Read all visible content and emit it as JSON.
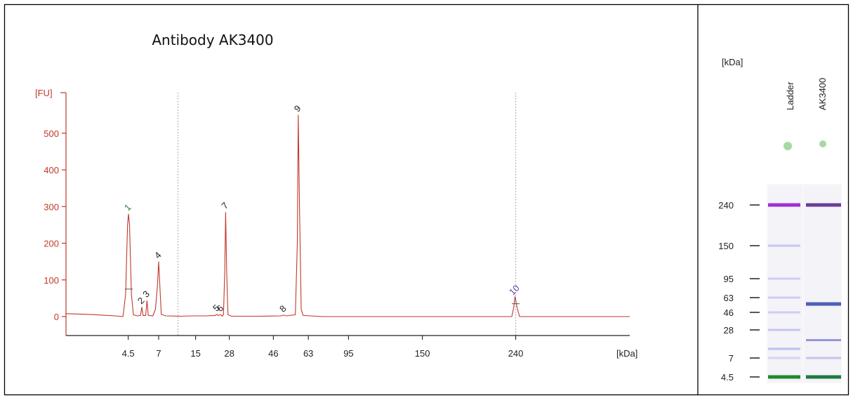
{
  "chart_data": {
    "type": "line",
    "title": "Antibody AK3400",
    "ylabel": "[FU]",
    "xlabel": "[kDa]",
    "ylim": [
      -60,
      600
    ],
    "y_ticks": [
      0,
      100,
      200,
      300,
      400,
      500
    ],
    "x_ticks": [
      "4.5",
      "7",
      "15",
      "28",
      "46",
      "63",
      "95",
      "150",
      "240"
    ],
    "x_tick_time": [
      32.5,
      34.85,
      37.7,
      40.3,
      43.7,
      46.4,
      49.5,
      55.2,
      62.4
    ],
    "x_range_time": [
      27.7,
      71.2
    ],
    "vlines_time": [
      36.35,
      62.4
    ],
    "trace_color": "#c0392b",
    "trace": [
      [
        27.7,
        8
      ],
      [
        28.5,
        7
      ],
      [
        29.5,
        6
      ],
      [
        30.5,
        4
      ],
      [
        31.5,
        2
      ],
      [
        32.1,
        0
      ],
      [
        32.3,
        60
      ],
      [
        32.45,
        250
      ],
      [
        32.52,
        280
      ],
      [
        32.6,
        250
      ],
      [
        32.75,
        60
      ],
      [
        32.9,
        5
      ],
      [
        33.2,
        2
      ],
      [
        33.45,
        3
      ],
      [
        33.55,
        26
      ],
      [
        33.65,
        3
      ],
      [
        33.85,
        3
      ],
      [
        33.95,
        44
      ],
      [
        34.05,
        3
      ],
      [
        34.4,
        2
      ],
      [
        34.6,
        20
      ],
      [
        34.75,
        80
      ],
      [
        34.85,
        150
      ],
      [
        34.95,
        80
      ],
      [
        35.05,
        6
      ],
      [
        35.4,
        2
      ],
      [
        36.5,
        1
      ],
      [
        37.5,
        2
      ],
      [
        38.5,
        2
      ],
      [
        39.2,
        3
      ],
      [
        39.35,
        6
      ],
      [
        39.45,
        3
      ],
      [
        39.65,
        5
      ],
      [
        39.75,
        1
      ],
      [
        39.85,
        5
      ],
      [
        39.95,
        120
      ],
      [
        40.02,
        285
      ],
      [
        40.1,
        120
      ],
      [
        40.2,
        5
      ],
      [
        40.5,
        1
      ],
      [
        42.5,
        1
      ],
      [
        44.3,
        2
      ],
      [
        44.5,
        4
      ],
      [
        44.7,
        2
      ],
      [
        45.4,
        5
      ],
      [
        45.55,
        200
      ],
      [
        45.62,
        550
      ],
      [
        45.72,
        300
      ],
      [
        45.85,
        20
      ],
      [
        46.0,
        3
      ],
      [
        47.5,
        0
      ],
      [
        49.5,
        0
      ],
      [
        54.0,
        0
      ],
      [
        58.0,
        0
      ],
      [
        62.1,
        0
      ],
      [
        62.25,
        25
      ],
      [
        62.35,
        55
      ],
      [
        62.5,
        25
      ],
      [
        62.7,
        0
      ],
      [
        66.0,
        0
      ],
      [
        71.2,
        0
      ]
    ],
    "peaks": [
      {
        "label": "1",
        "time": 32.52,
        "y": 280,
        "color": "#2e7d32"
      },
      {
        "label": "2",
        "time": 33.55,
        "y": 26,
        "color": "#222222"
      },
      {
        "label": "3",
        "time": 33.95,
        "y": 44,
        "color": "#222222"
      },
      {
        "label": "4",
        "time": 34.85,
        "y": 150,
        "color": "#222222"
      },
      {
        "label": "5",
        "time": 39.35,
        "y": 6,
        "color": "#222222"
      },
      {
        "label": "6",
        "time": 39.65,
        "y": 5,
        "color": "#222222"
      },
      {
        "label": "7",
        "time": 40.02,
        "y": 285,
        "color": "#222222"
      },
      {
        "label": "8",
        "time": 44.5,
        "y": 4,
        "color": "#222222"
      },
      {
        "label": "9",
        "time": 45.62,
        "y": 550,
        "color": "#222222"
      },
      {
        "label": "10",
        "time": 62.35,
        "y": 55,
        "color": "#6a3d9a"
      }
    ]
  },
  "gel": {
    "unit": "[kDa]",
    "lanes": [
      "Ladder",
      "AK3400"
    ],
    "markers": [
      {
        "label": "240",
        "kda": 240
      },
      {
        "label": "150",
        "kda": 150
      },
      {
        "label": "95",
        "kda": 95
      },
      {
        "label": "63",
        "kda": 63
      },
      {
        "label": "46",
        "kda": 46
      },
      {
        "label": "28",
        "kda": 28
      },
      {
        "label": "7",
        "kda": 7
      },
      {
        "label": "4.5",
        "kda": 4.5
      }
    ],
    "ladder_bands": [
      {
        "kda": 240,
        "color": "#9b30d9",
        "strength": 1.0
      },
      {
        "kda": 150,
        "color": "#a7a7f0",
        "strength": 0.6
      },
      {
        "kda": 95,
        "color": "#a7a7f0",
        "strength": 0.5
      },
      {
        "kda": 63,
        "color": "#a7a7f0",
        "strength": 0.5
      },
      {
        "kda": 46,
        "color": "#a7a7f0",
        "strength": 0.5
      },
      {
        "kda": 28,
        "color": "#a7a7f0",
        "strength": 0.6
      },
      {
        "kda": 15,
        "color": "#a7a7f0",
        "strength": 0.7
      },
      {
        "kda": 7,
        "color": "#a7a7f0",
        "strength": 0.4
      },
      {
        "kda": 4.5,
        "color": "#1e8a2e",
        "strength": 1.0
      }
    ],
    "sample_bands": [
      {
        "kda": 240,
        "color": "#6a3d9a",
        "strength": 1.0
      },
      {
        "kda": 55,
        "color": "#3c4cb0",
        "strength": 0.9
      },
      {
        "kda": 20,
        "color": "#6c6cd0",
        "strength": 0.7
      },
      {
        "kda": 7,
        "color": "#9898e0",
        "strength": 0.5
      },
      {
        "kda": 4.5,
        "color": "#1e7a40",
        "strength": 1.0
      }
    ],
    "marker_dot_color": "#8fd18f"
  }
}
